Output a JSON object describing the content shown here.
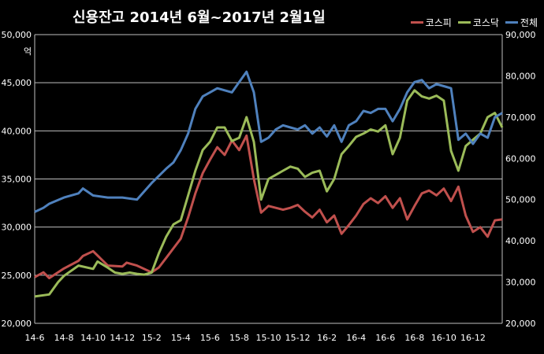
{
  "chart_data": {
    "type": "line",
    "title": "신용잔고 2014년 6월~2017년 2월1일",
    "ylabel_left_unit": "억",
    "x_ticks": [
      "14-6",
      "14-8",
      "14-10",
      "14-12",
      "15-2",
      "15-4",
      "15-6",
      "15-8",
      "15-10",
      "15-12",
      "16-2",
      "16-4",
      "16-6",
      "16-8",
      "16-10",
      "16-12"
    ],
    "y_left": {
      "ticks": [
        "20,000",
        "25,000",
        "30,000",
        "35,000",
        "40,000",
        "45,000",
        "50,000"
      ],
      "range": [
        20000,
        50000
      ]
    },
    "y_right": {
      "ticks": [
        "20,000",
        "30,000",
        "40,000",
        "50,000",
        "60,000",
        "70,000",
        "80,000",
        "90,000"
      ],
      "range": [
        20000,
        90000
      ]
    },
    "grid": true,
    "legend_position": "top-right",
    "series": [
      {
        "name": "코스피",
        "axis": "left",
        "color": "#c0504d",
        "x": [
          0,
          0.6,
          1,
          2,
          3,
          3.3,
          4,
          5,
          6,
          6.3,
          7,
          8,
          8.5,
          9,
          9.5,
          10,
          10.5,
          11,
          11.5,
          12,
          12.5,
          13,
          13.5,
          14,
          14.5,
          15,
          15.5,
          16,
          16.5,
          17,
          17.5,
          18,
          18.5,
          19,
          19.5,
          20,
          20.5,
          21,
          21.5,
          22,
          22.5,
          23,
          23.5,
          24,
          24.5,
          25,
          25.5,
          26,
          26.5,
          27,
          27.5,
          28,
          28.5,
          29,
          29.5,
          30,
          30.5,
          31,
          31.5,
          32
        ],
        "values": [
          24800,
          25300,
          24700,
          25700,
          26500,
          27000,
          27500,
          26000,
          25900,
          26300,
          26000,
          25300,
          25800,
          26800,
          27800,
          28800,
          31000,
          33500,
          35600,
          37000,
          38300,
          37500,
          39000,
          38000,
          39500,
          35000,
          31500,
          32200,
          32000,
          31800,
          32000,
          32300,
          31600,
          31000,
          31800,
          30500,
          31200,
          29300,
          30200,
          31200,
          32400,
          33000,
          32500,
          33200,
          32000,
          33000,
          30800,
          32200,
          33500,
          33800,
          33300,
          34000,
          32700,
          34200,
          31200,
          29500,
          30000,
          29000,
          30700,
          30800
        ]
      },
      {
        "name": "코스닥",
        "axis": "right",
        "color": "#9bbb59",
        "x": [
          0,
          1,
          1.6,
          2,
          3,
          4,
          4.3,
          5,
          5.5,
          6,
          6.5,
          7,
          7.5,
          8,
          8.5,
          9,
          9.5,
          10,
          10.5,
          11,
          11.5,
          12,
          12.5,
          13,
          13.5,
          14,
          14.5,
          15,
          15.5,
          16,
          16.5,
          17,
          17.5,
          18,
          18.5,
          19,
          19.5,
          20,
          20.5,
          21,
          21.5,
          22,
          22.5,
          23,
          23.5,
          24,
          24.5,
          25,
          25.5,
          26,
          26.5,
          27,
          27.5,
          28,
          28.5,
          29,
          29.5,
          30,
          30.5,
          31,
          31.5,
          32
        ],
        "values": [
          26500,
          27000,
          30000,
          31500,
          34000,
          33200,
          35000,
          33500,
          32300,
          32000,
          32300,
          32000,
          31800,
          32300,
          37000,
          41000,
          44000,
          45000,
          51000,
          57000,
          62000,
          64000,
          67500,
          67500,
          64200,
          65000,
          70000,
          64000,
          50000,
          55000,
          56000,
          57000,
          58000,
          57500,
          55500,
          56500,
          57000,
          52000,
          55000,
          61000,
          63000,
          65200,
          66000,
          67000,
          66500,
          68000,
          61000,
          65000,
          74000,
          76500,
          75000,
          74500,
          75200,
          74000,
          61800,
          57000,
          63000,
          64500,
          66000,
          70000,
          71000,
          67500
        ]
      },
      {
        "name": "전체",
        "axis": "right",
        "color": "#4f81bd",
        "x": [
          0,
          0.6,
          1,
          2,
          3,
          3.3,
          4,
          5,
          6,
          7,
          8,
          9,
          9.5,
          10,
          10.5,
          11,
          11.5,
          12,
          12.5,
          13,
          13.5,
          14,
          14.5,
          15,
          15.5,
          16,
          16.5,
          17,
          17.5,
          18,
          18.5,
          19,
          19.5,
          20,
          20.5,
          21,
          21.5,
          22,
          22.5,
          23,
          23.5,
          24,
          24.5,
          25,
          25.5,
          26,
          26.5,
          27,
          27.5,
          28,
          28.5,
          29,
          29.5,
          30,
          30.5,
          31,
          31.5,
          32
        ],
        "values": [
          47000,
          48000,
          49000,
          50500,
          51500,
          52700,
          51000,
          50500,
          50500,
          50000,
          54000,
          57500,
          59000,
          62000,
          66000,
          72000,
          75000,
          76000,
          77000,
          76500,
          76000,
          78500,
          81000,
          76000,
          64000,
          65000,
          67000,
          68000,
          67500,
          67000,
          68000,
          66000,
          67500,
          65300,
          68000,
          64000,
          68000,
          69000,
          71500,
          71000,
          72000,
          72000,
          69000,
          72000,
          76000,
          78500,
          79000,
          77000,
          78000,
          77500,
          77000,
          64500,
          66000,
          63500,
          66000,
          65000,
          70000,
          71000
        ]
      }
    ],
    "x_range": [
      0,
      32
    ]
  }
}
